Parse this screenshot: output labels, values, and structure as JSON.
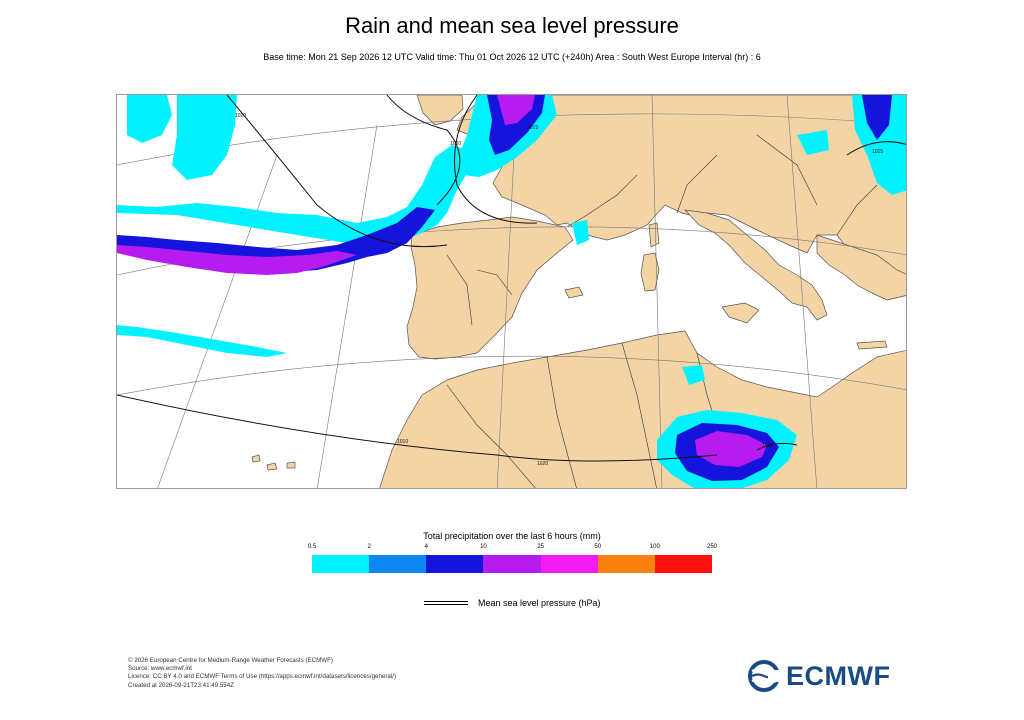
{
  "title": "Rain and mean sea level pressure",
  "subtitle": "Base time: Mon 21 Sep 2026 12 UTC Valid time: Thu 01 Oct 2026 12 UTC (+240h) Area : South West Europe Interval (hr) : 6",
  "map": {
    "isobar_labels": [
      "1020",
      "1020",
      "1015",
      "1010",
      "1020",
      "1015",
      "1015"
    ]
  },
  "legend": {
    "title": "Total precipitation over the last 6 hours (mm)",
    "ticks": [
      "0.5",
      "2",
      "4",
      "10",
      "25",
      "50",
      "100",
      "250"
    ],
    "colors": [
      "#00f2ff",
      "#0f87f7",
      "#1414dc",
      "#b61bf0",
      "#f41cf5",
      "#fd8110",
      "#fb0f0f"
    ],
    "pressure_label": "Mean sea level pressure (hPa)"
  },
  "credits": {
    "line1": "© 2026 European Centre for Medium-Range Weather Forecasts (ECMWF)",
    "line2": "Source: www.ecmwf.int",
    "line3": "Licence: CC BY 4.0 and ECMWF Terms of Use (https://apps.ecmwf.int/datasets/licences/general/)",
    "line4": "Created at 2026-09-21T23:41:49.554Z"
  },
  "logo": {
    "text": "ECMWF",
    "color": "#1a4b82"
  },
  "colors": {
    "land": "#f4d4a4",
    "sea": "#ffffff"
  }
}
